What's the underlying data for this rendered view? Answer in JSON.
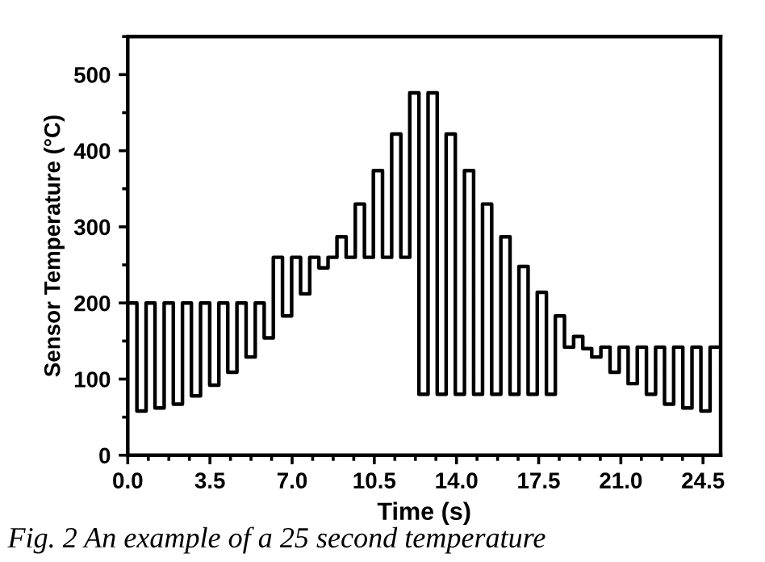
{
  "chart_data": {
    "type": "step",
    "xlabel": "Time (s)",
    "ylabel": "Sensor Temperature (°C)",
    "annotations": [
      "Fig. 2 An example of a 25 second temperature"
    ],
    "series": [
      {
        "color": "#000000",
        "x": [
          0,
          0.39,
          0.78,
          1.16,
          1.55,
          1.94,
          2.33,
          2.71,
          3.1,
          3.49,
          3.88,
          4.26,
          4.65,
          5.04,
          5.43,
          5.81,
          6.2,
          6.59,
          6.98,
          7.36,
          7.75,
          8.14,
          8.53,
          8.91,
          9.3,
          9.69,
          10.08,
          10.46,
          10.85,
          11.24,
          11.63,
          12.01,
          12.4,
          12.79,
          13.18,
          13.56,
          13.95,
          14.34,
          14.73,
          15.11,
          15.5,
          15.89,
          16.28,
          16.66,
          17.05,
          17.44,
          17.83,
          18.21,
          18.6,
          18.99,
          19.38,
          19.76,
          20.15,
          20.54,
          20.93,
          21.31,
          21.7,
          22.09,
          22.48,
          22.86,
          23.25,
          23.64,
          24.03,
          24.41,
          24.8,
          25.19
        ],
        "values": [
          200,
          58,
          200,
          62,
          200,
          67,
          200,
          78,
          200,
          92,
          200,
          109,
          200,
          129,
          200,
          154,
          260,
          183,
          260,
          212,
          260,
          246,
          260,
          287,
          260,
          330,
          260,
          374,
          260,
          422,
          260,
          476,
          80,
          476,
          80,
          422,
          80,
          374,
          80,
          330,
          80,
          287,
          80,
          248,
          80,
          214,
          80,
          183,
          142,
          156,
          140,
          129,
          142,
          109,
          142,
          94,
          142,
          80,
          142,
          67,
          142,
          62,
          142,
          58,
          142,
          142
        ]
      }
    ],
    "xlim": [
      0,
      25.25
    ],
    "ylim": [
      0,
      550
    ],
    "xticks": [
      {
        "value": 0,
        "label": "0.0"
      },
      {
        "value": 3.5,
        "label": "3.5"
      },
      {
        "value": 7,
        "label": "7.0"
      },
      {
        "value": 10.5,
        "label": "10.5"
      },
      {
        "value": 14,
        "label": "14.0"
      },
      {
        "value": 17.5,
        "label": "17.5"
      },
      {
        "value": 21,
        "label": "21.0"
      },
      {
        "value": 24.5,
        "label": "24.5"
      }
    ],
    "yticks": [
      0,
      100,
      200,
      300,
      400,
      500
    ],
    "grid": false,
    "legend": false,
    "marker": "none",
    "line_style": "solid"
  }
}
